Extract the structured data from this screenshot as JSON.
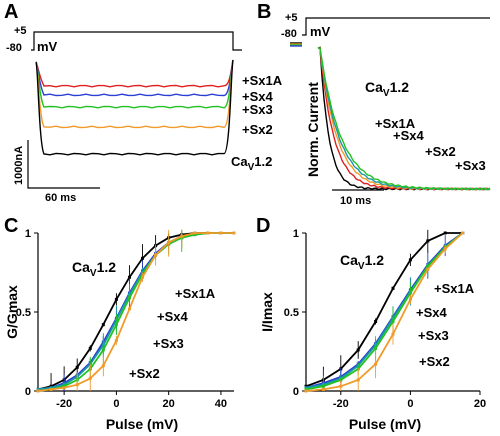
{
  "panels": {
    "A": {
      "letter": "A",
      "protocol": {
        "top": "+5",
        "bottom": "-80",
        "unit": "mV"
      },
      "scale": {
        "current": "1000nA",
        "time": "60 ms"
      },
      "trace_labels": [
        "+Sx1A",
        "+Sx4",
        "+Sx3",
        "+Sx2",
        "CaV1.2"
      ]
    },
    "B": {
      "letter": "B",
      "protocol": {
        "top": "+5",
        "bottom": "-80",
        "unit": "mV"
      },
      "ylabel": "Norm. Current",
      "scale": {
        "time": "10 ms"
      },
      "trace_labels": [
        "CaV1.2",
        "+Sx1A",
        "+Sx4",
        "+Sx2",
        "+Sx3"
      ]
    },
    "C": {
      "letter": "C",
      "series_labels": [
        "CaV1.2",
        "+Sx1A",
        "+Sx4",
        "+Sx3",
        "+Sx2"
      ]
    },
    "D": {
      "letter": "D",
      "series_labels": [
        "CaV1.2",
        "+Sx1A",
        "+Sx4",
        "+Sx3",
        "+Sx2"
      ]
    }
  },
  "colors": {
    "CaV1.2": "#000000",
    "+Sx1A": "#2a3fd4",
    "+Sx4": "#1a9aa6",
    "+Sx3": "#22c222",
    "+Sx2": "#f09a2a",
    "Sx1A_trace": "#e02020"
  },
  "chart_data": [
    {
      "type": "line",
      "panel": "C",
      "xlabel": "Pulse (mV)",
      "ylabel": "G/Gmax",
      "xlim": [
        -30,
        45
      ],
      "ylim": [
        0,
        1
      ],
      "xticks": [
        -20,
        0,
        20,
        40
      ],
      "yticks": [
        0,
        0.5,
        1
      ],
      "x": [
        -30,
        -25,
        -20,
        -15,
        -10,
        -5,
        0,
        5,
        10,
        15,
        20,
        25,
        30,
        35,
        40,
        45
      ],
      "series": [
        {
          "name": "CaV1.2",
          "values": [
            0.01,
            0.03,
            0.07,
            0.15,
            0.27,
            0.42,
            0.58,
            0.72,
            0.84,
            0.92,
            0.97,
            0.99,
            1.0,
            1.0,
            1.0,
            1.0
          ]
        },
        {
          "name": "+Sx1A",
          "values": [
            0.01,
            0.02,
            0.05,
            0.1,
            0.18,
            0.31,
            0.46,
            0.62,
            0.76,
            0.87,
            0.94,
            0.98,
            0.99,
            1.0,
            1.0,
            1.0
          ]
        },
        {
          "name": "+Sx4",
          "values": [
            0.01,
            0.02,
            0.04,
            0.09,
            0.17,
            0.29,
            0.45,
            0.61,
            0.75,
            0.86,
            0.93,
            0.97,
            0.99,
            1.0,
            1.0,
            1.0
          ]
        },
        {
          "name": "+Sx3",
          "values": [
            0.0,
            0.01,
            0.03,
            0.07,
            0.14,
            0.26,
            0.42,
            0.59,
            0.74,
            0.86,
            0.93,
            0.97,
            0.99,
            1.0,
            1.0,
            1.0
          ]
        },
        {
          "name": "+Sx2",
          "values": [
            0.0,
            0.01,
            0.02,
            0.04,
            0.08,
            0.16,
            0.32,
            0.52,
            0.72,
            0.86,
            0.94,
            0.98,
            1.0,
            1.0,
            1.0,
            1.0
          ]
        }
      ]
    },
    {
      "type": "line",
      "panel": "D",
      "xlabel": "Pulse (mV)",
      "ylabel": "I/Imax",
      "xlim": [
        -30,
        20
      ],
      "ylim": [
        0,
        1
      ],
      "xticks": [
        -20,
        0,
        20
      ],
      "yticks": [
        0,
        0.5,
        1
      ],
      "x": [
        -30,
        -25,
        -20,
        -15,
        -10,
        -5,
        0,
        5,
        10,
        15
      ],
      "series": [
        {
          "name": "CaV1.2",
          "values": [
            0.03,
            0.07,
            0.14,
            0.26,
            0.44,
            0.65,
            0.83,
            0.95,
            1.0,
            1.0
          ]
        },
        {
          "name": "+Sx1A",
          "values": [
            0.02,
            0.05,
            0.09,
            0.17,
            0.3,
            0.47,
            0.64,
            0.8,
            0.92,
            1.0
          ]
        },
        {
          "name": "+Sx4",
          "values": [
            0.02,
            0.04,
            0.08,
            0.16,
            0.29,
            0.46,
            0.63,
            0.79,
            0.91,
            1.0
          ]
        },
        {
          "name": "+Sx3",
          "values": [
            0.01,
            0.03,
            0.07,
            0.14,
            0.27,
            0.44,
            0.62,
            0.79,
            0.91,
            1.0
          ]
        },
        {
          "name": "+Sx2",
          "values": [
            0.0,
            0.01,
            0.03,
            0.07,
            0.17,
            0.36,
            0.58,
            0.77,
            0.9,
            1.0
          ]
        }
      ]
    }
  ]
}
